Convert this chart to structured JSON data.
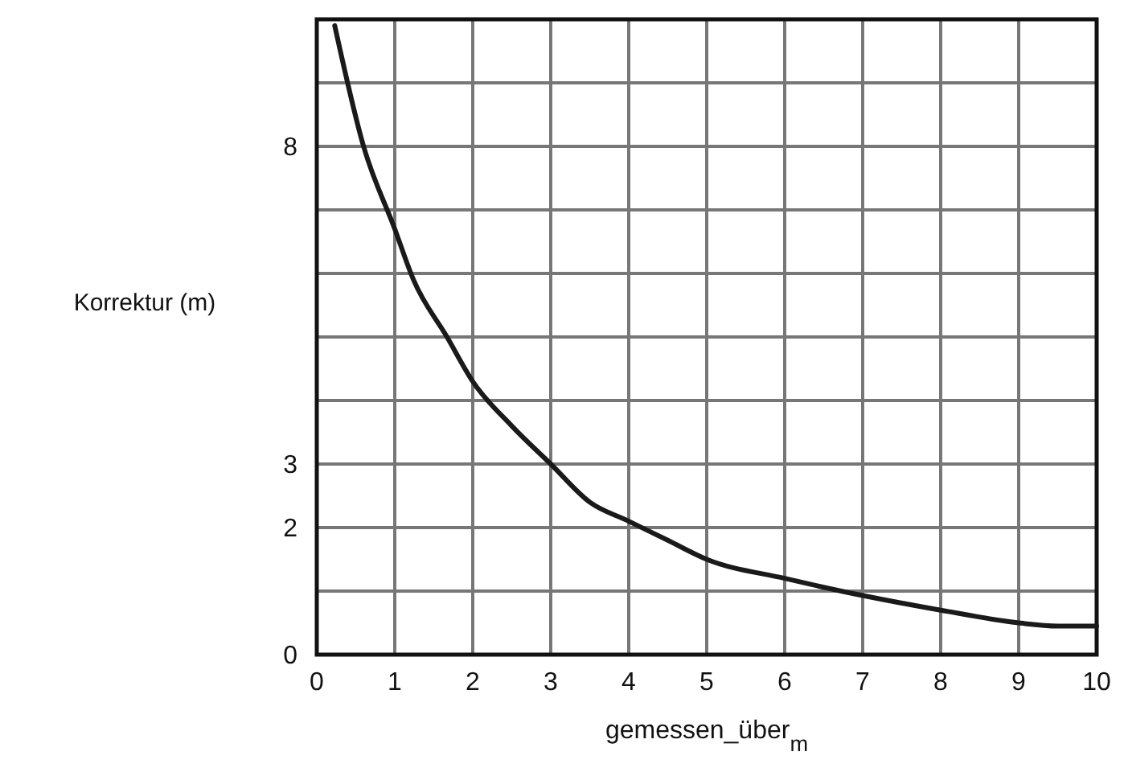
{
  "chart_data": {
    "type": "line",
    "xlabel": "gemessen_über$_{m}$",
    "ylabel": "Korrektur (m)",
    "xlim": [
      0,
      10
    ],
    "ylim": [
      0,
      10
    ],
    "xticks": [
      0,
      1,
      2,
      3,
      4,
      5,
      6,
      7,
      8,
      9,
      10
    ],
    "yticks": [
      0,
      {
        "value": 1,
        "label": null
      },
      2,
      3,
      {
        "value": 4,
        "label": null
      },
      {
        "value": 5,
        "label": null
      },
      {
        "value": 6,
        "label": null
      },
      {
        "value": 7,
        "label": null
      },
      8,
      {
        "value": 9,
        "label": null
      },
      {
        "value": 10,
        "label": null
      }
    ],
    "grid": true,
    "marker": "none",
    "line_style": "solid",
    "series": [
      {
        "color": "#1a1a1a",
        "x": [
          0.23,
          0.6,
          1,
          1.24,
          1.67,
          2,
          2.5,
          3,
          3.5,
          4,
          4.5,
          5,
          6,
          7,
          8,
          9,
          9.5,
          10
        ],
        "values": [
          9.9,
          8,
          6.7,
          5.9,
          5,
          4.3,
          3.6,
          3,
          2.4,
          2.1,
          1.8,
          1.5,
          1.2,
          0.93,
          0.7,
          0.5,
          0.45,
          0.45
        ]
      }
    ]
  }
}
